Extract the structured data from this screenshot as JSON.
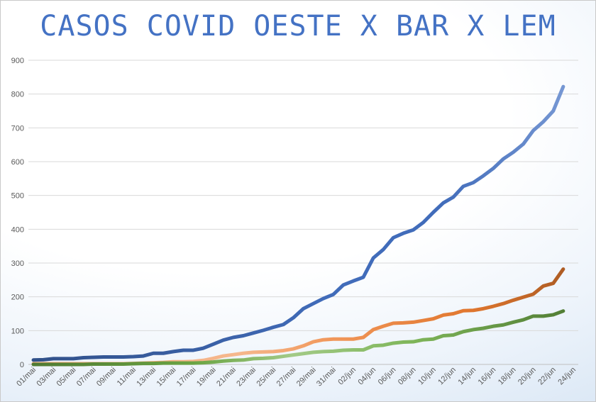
{
  "chart_data": {
    "type": "line",
    "title": "CASOS COVID OESTE X BAR X LEM",
    "xlabel": "",
    "ylabel": "",
    "ylim": [
      0,
      900
    ],
    "yticks": [
      0,
      100,
      200,
      300,
      400,
      500,
      600,
      700,
      800,
      900
    ],
    "grid": true,
    "legend": "none",
    "categories": [
      "01/mai",
      "02/mai",
      "03/mai",
      "04/mai",
      "05/mai",
      "06/mai",
      "07/mai",
      "08/mai",
      "09/mai",
      "10/mai",
      "11/mai",
      "12/mai",
      "13/mai",
      "14/mai",
      "15/mai",
      "16/mai",
      "17/mai",
      "18/mai",
      "19/mai",
      "20/mai",
      "21/mai",
      "22/mai",
      "23/mai",
      "24/mai",
      "25/mai",
      "26/mai",
      "27/mai",
      "28/mai",
      "29/mai",
      "30/mai",
      "31/mai",
      "01/jun",
      "02/jun",
      "03/jun",
      "04/jun",
      "05/jun",
      "06/jun",
      "07/jun",
      "08/jun",
      "09/jun",
      "10/jun",
      "11/jun",
      "12/jun",
      "13/jun",
      "14/jun",
      "15/jun",
      "16/jun",
      "17/jun",
      "18/jun",
      "19/jun",
      "20/jun",
      "21/jun",
      "22/jun",
      "23/jun",
      "24/jun"
    ],
    "tick_labels": [
      "01/mai",
      "03/mai",
      "05/mai",
      "07/mai",
      "09/mai",
      "11/mai",
      "13/mai",
      "15/mai",
      "17/mai",
      "19/mai",
      "21/mai",
      "23/mai",
      "25/mai",
      "27/mai",
      "29/mai",
      "31/mai",
      "02/jun",
      "04/jun",
      "06/jun",
      "08/jun",
      "10/jun",
      "12/jun",
      "14/jun",
      "16/jun",
      "18/jun",
      "20/jun",
      "22/jun",
      "24/jun"
    ],
    "series": [
      {
        "color": "#4472c4",
        "values": [
          13,
          14,
          17,
          17,
          17,
          20,
          21,
          22,
          22,
          22,
          23,
          25,
          33,
          33,
          38,
          42,
          42,
          48,
          60,
          72,
          80,
          85,
          93,
          101,
          110,
          118,
          138,
          165,
          180,
          195,
          207,
          235,
          247,
          258,
          315,
          340,
          375,
          388,
          398,
          420,
          450,
          478,
          495,
          527,
          538,
          558,
          580,
          608,
          628,
          652,
          692,
          718,
          750,
          822,
          null
        ]
      },
      {
        "color": "#ed7d31",
        "values": [
          2,
          2,
          2,
          2,
          2,
          2,
          2,
          2,
          2,
          2,
          3,
          4,
          5,
          6,
          8,
          8,
          9,
          12,
          18,
          25,
          29,
          33,
          36,
          37,
          38,
          41,
          46,
          55,
          67,
          73,
          75,
          75,
          75,
          80,
          103,
          113,
          122,
          123,
          125,
          130,
          135,
          146,
          150,
          159,
          160,
          165,
          172,
          180,
          190,
          199,
          208,
          232,
          240,
          282,
          null
        ]
      },
      {
        "color": "#70ad47",
        "values": [
          0,
          0,
          0,
          0,
          0,
          0,
          1,
          1,
          1,
          1,
          2,
          3,
          3,
          4,
          4,
          4,
          4,
          5,
          7,
          10,
          12,
          13,
          17,
          18,
          20,
          24,
          28,
          32,
          36,
          38,
          39,
          42,
          43,
          43,
          55,
          57,
          63,
          66,
          67,
          73,
          75,
          85,
          87,
          97,
          103,
          107,
          113,
          117,
          125,
          132,
          143,
          143,
          147,
          158,
          null
        ]
      }
    ]
  }
}
